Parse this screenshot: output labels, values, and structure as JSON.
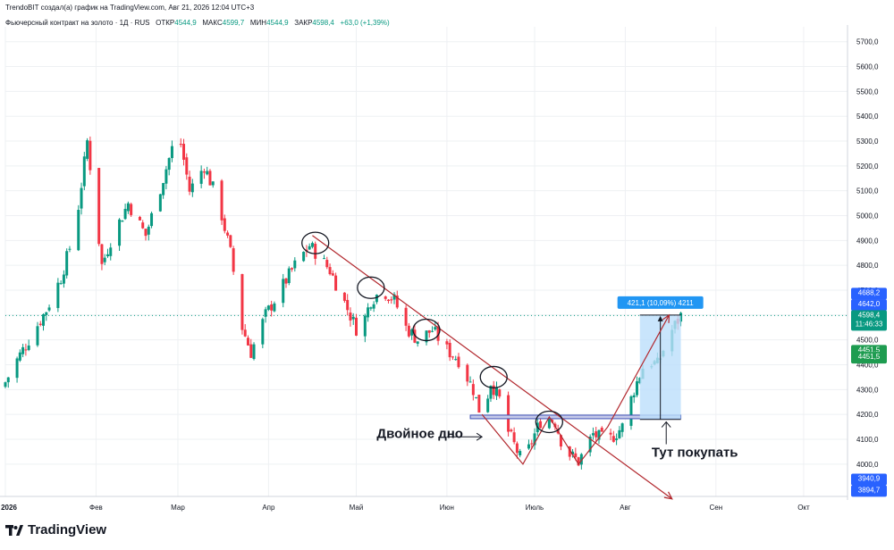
{
  "header": {
    "attribution": "TrendoBIT создал(а) график на TradingView.com, Авг 21, 2026 12:04 UTC+3",
    "symbol": "Фьючерсный контракт на золото · 1Д · RUS",
    "open_label": "ОТКР",
    "open_value": "4544,9",
    "high_label": "МАКС",
    "high_value": "4599,7",
    "low_label": "МИН",
    "low_value": "4544,9",
    "close_label": "ЗАКР",
    "close_value": "4598,4",
    "change": "+63,0 (+1,39%)"
  },
  "brand": {
    "name": "TradingView"
  },
  "colors": {
    "up": "#089981",
    "down": "#f23645",
    "trend": "#b2282e",
    "grid": "#eef0f3",
    "axis_text": "#131722",
    "label_blue": "#2962ff",
    "label_green": "#1e9c50",
    "range_fill": "#bbdefb"
  },
  "chart_data": {
    "type": "candlestick",
    "title": "Фьючерсный контракт на золото · 1Д · RUS",
    "xlabel": "",
    "ylabel": "",
    "ylim": [
      3870,
      5760
    ],
    "price_ticks": [
      4000,
      4100,
      4200,
      4300,
      4400,
      4500,
      4600,
      4700,
      4800,
      4900,
      5000,
      5100,
      5200,
      5300,
      5400,
      5500,
      5600,
      5700
    ],
    "price_tick_labels": [
      "4000,0",
      "4100,0",
      "4200,0",
      "4300,0",
      "4400,0",
      "4500,0",
      "4600,0",
      "4700,0",
      "4800,0",
      "4900,0",
      "5000,0",
      "5100,0",
      "5200,0",
      "5300,0",
      "5400,0",
      "5500,0",
      "5600,0",
      "5700,0"
    ],
    "x_range": [
      "2026-01-01",
      "2026-10-16"
    ],
    "time_ticks": [
      {
        "date": "2026-01-01",
        "label": "2026"
      },
      {
        "date": "2026-02-01",
        "label": "Фев"
      },
      {
        "date": "2026-03-01",
        "label": "Мар"
      },
      {
        "date": "2026-04-01",
        "label": "Апр"
      },
      {
        "date": "2026-05-01",
        "label": "Май"
      },
      {
        "date": "2026-06-01",
        "label": "Июн"
      },
      {
        "date": "2026-07-01",
        "label": "Июль"
      },
      {
        "date": "2026-08-01",
        "label": "Авг"
      },
      {
        "date": "2026-09-01",
        "label": "Сен"
      },
      {
        "date": "2026-10-01",
        "label": "Окт"
      }
    ],
    "price_waypoints": [
      {
        "date": "2026-01-01",
        "price": 4330
      },
      {
        "date": "2026-01-05",
        "price": 4420
      },
      {
        "date": "2026-01-10",
        "price": 4520
      },
      {
        "date": "2026-01-15",
        "price": 4620
      },
      {
        "date": "2026-01-20",
        "price": 4750
      },
      {
        "date": "2026-01-25",
        "price": 4950
      },
      {
        "date": "2026-01-29",
        "price": 5300
      },
      {
        "date": "2026-02-03",
        "price": 4800
      },
      {
        "date": "2026-02-06",
        "price": 4900
      },
      {
        "date": "2026-02-12",
        "price": 5050
      },
      {
        "date": "2026-02-18",
        "price": 4920
      },
      {
        "date": "2026-02-24",
        "price": 5150
      },
      {
        "date": "2026-03-01",
        "price": 5350
      },
      {
        "date": "2026-03-05",
        "price": 5100
      },
      {
        "date": "2026-03-10",
        "price": 5200
      },
      {
        "date": "2026-03-15",
        "price": 5050
      },
      {
        "date": "2026-03-19",
        "price": 4850
      },
      {
        "date": "2026-03-23",
        "price": 4550
      },
      {
        "date": "2026-03-26",
        "price": 4450
      },
      {
        "date": "2026-03-31",
        "price": 4600
      },
      {
        "date": "2026-04-05",
        "price": 4700
      },
      {
        "date": "2026-04-10",
        "price": 4800
      },
      {
        "date": "2026-04-15",
        "price": 4880
      },
      {
        "date": "2026-04-18",
        "price": 4840
      },
      {
        "date": "2026-04-22",
        "price": 4780
      },
      {
        "date": "2026-04-27",
        "price": 4650
      },
      {
        "date": "2026-05-02",
        "price": 4520
      },
      {
        "date": "2026-05-06",
        "price": 4660
      },
      {
        "date": "2026-05-10",
        "price": 4700
      },
      {
        "date": "2026-05-14",
        "price": 4660
      },
      {
        "date": "2026-05-18",
        "price": 4550
      },
      {
        "date": "2026-05-22",
        "price": 4500
      },
      {
        "date": "2026-05-27",
        "price": 4540
      },
      {
        "date": "2026-06-01",
        "price": 4460
      },
      {
        "date": "2026-06-05",
        "price": 4420
      },
      {
        "date": "2026-06-10",
        "price": 4300
      },
      {
        "date": "2026-06-13",
        "price": 4180
      },
      {
        "date": "2026-06-16",
        "price": 4330
      },
      {
        "date": "2026-06-19",
        "price": 4260
      },
      {
        "date": "2026-06-22",
        "price": 4130
      },
      {
        "date": "2026-06-27",
        "price": 4000
      },
      {
        "date": "2026-07-01",
        "price": 4120
      },
      {
        "date": "2026-07-04",
        "price": 4200
      },
      {
        "date": "2026-07-08",
        "price": 4170
      },
      {
        "date": "2026-07-11",
        "price": 4060
      },
      {
        "date": "2026-07-16",
        "price": 4010
      },
      {
        "date": "2026-07-21",
        "price": 4120
      },
      {
        "date": "2026-07-26",
        "price": 4090
      },
      {
        "date": "2026-07-31",
        "price": 4150
      },
      {
        "date": "2026-08-04",
        "price": 4300
      },
      {
        "date": "2026-08-08",
        "price": 4420
      },
      {
        "date": "2026-08-12",
        "price": 4400
      },
      {
        "date": "2026-08-16",
        "price": 4520
      },
      {
        "date": "2026-08-20",
        "price": 4598
      }
    ],
    "last_price": {
      "value": "4598,4",
      "countdown": "11:46:33"
    },
    "price_labels": [
      {
        "value": "4688,2",
        "price": 4688,
        "kind": "blue"
      },
      {
        "value": "4642,0",
        "price": 4642,
        "kind": "blue"
      },
      {
        "value": "4451,5",
        "price": 4458,
        "kind": "green"
      },
      {
        "value": "4451,5",
        "price": 4430,
        "kind": "green"
      },
      {
        "value": "3940,9",
        "price": 3940,
        "kind": "blue"
      },
      {
        "value": "3894,7",
        "price": 3894,
        "kind": "blue"
      }
    ],
    "annotations": {
      "trendline": {
        "from": {
          "date": "2026-04-16",
          "price": 4920
        },
        "to": {
          "date": "2026-08-17",
          "price": 3860
        }
      },
      "resistance_band": {
        "from_date": "2026-06-09",
        "to_date": "2026-08-20",
        "price": 4190
      },
      "circles": [
        {
          "date": "2026-04-17",
          "price": 4890
        },
        {
          "date": "2026-05-06",
          "price": 4710
        },
        {
          "date": "2026-05-25",
          "price": 4540
        },
        {
          "date": "2026-06-17",
          "price": 4350
        },
        {
          "date": "2026-07-06",
          "price": 4170
        }
      ],
      "zigzag": [
        {
          "date": "2026-06-13",
          "price": 4200
        },
        {
          "date": "2026-06-27",
          "price": 4000
        },
        {
          "date": "2026-07-06",
          "price": 4190
        },
        {
          "date": "2026-07-16",
          "price": 4000
        },
        {
          "date": "2026-07-26",
          "price": 4150
        },
        {
          "date": "2026-08-16",
          "price": 4600
        }
      ],
      "measure": {
        "from_date": "2026-08-06",
        "to_date": "2026-08-20",
        "price_low": 4180,
        "price_high": 4600,
        "label": "421,1 (10,09%) 4211"
      },
      "texts": [
        {
          "id": "double-bottom",
          "text": "Двойное дно",
          "date": "2026-05-08",
          "price": 4105
        },
        {
          "id": "buy-here",
          "text": "Тут покупать",
          "date": "2026-08-10",
          "price": 4030
        }
      ],
      "double_bottom_arrow": {
        "from": {
          "date": "2026-06-01",
          "price": 4110
        },
        "to": {
          "date": "2026-06-13",
          "price": 4110
        }
      },
      "buy_arrow": {
        "from": {
          "date": "2026-08-15",
          "price": 4080
        },
        "to": {
          "date": "2026-08-15",
          "price": 4170
        }
      }
    }
  }
}
